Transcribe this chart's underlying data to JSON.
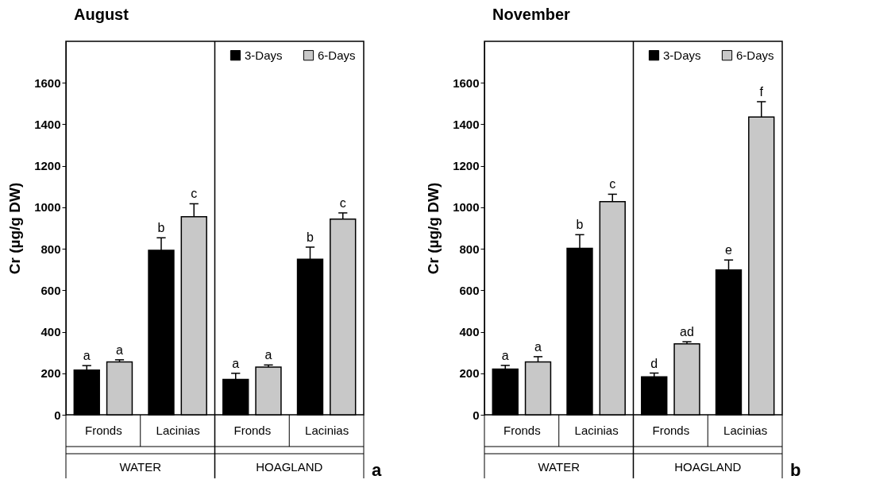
{
  "chart_data": [
    {
      "type": "bar",
      "title": "August",
      "ylabel": "Cr (µg/g DW)",
      "categories": [
        "Fronds",
        "Lacinias",
        "Fronds",
        "Lacinias"
      ],
      "series": [
        {
          "name": "3-Days",
          "color": "#000000",
          "values": [
            215,
            793,
            170,
            750
          ],
          "errors": [
            22,
            60,
            30,
            58
          ]
        },
        {
          "name": "6-Days",
          "color": "#c8c8c8",
          "values": [
            255,
            955,
            230,
            943
          ],
          "errors": [
            10,
            62,
            10,
            30
          ]
        }
      ],
      "ylim": [
        0,
        1800
      ],
      "yticks": [
        0,
        200,
        400,
        600,
        800,
        1000,
        1200,
        1400,
        1600
      ],
      "legend": "top right",
      "annotations": [
        "a",
        "b",
        "a",
        "b",
        "a",
        "c",
        "a",
        "c",
        "WATER",
        "HOAGLAND",
        "a"
      ]
    },
    {
      "type": "bar",
      "title": "November",
      "ylabel": "Cr (µg/g DW)",
      "categories": [
        "Fronds",
        "Lacinias",
        "Fronds",
        "Lacinias"
      ],
      "series": [
        {
          "name": "3-Days",
          "color": "#000000",
          "values": [
            220,
            802,
            183,
            698
          ],
          "errors": [
            18,
            66,
            18,
            48
          ]
        },
        {
          "name": "6-Days",
          "color": "#c8c8c8",
          "values": [
            255,
            1027,
            342,
            1435
          ],
          "errors": [
            25,
            36,
            10,
            74
          ]
        }
      ],
      "ylim": [
        0,
        1800
      ],
      "yticks": [
        0,
        200,
        400,
        600,
        800,
        1000,
        1200,
        1400,
        1600
      ],
      "legend": "top right",
      "annotations": [
        "a",
        "b",
        "d",
        "e",
        "a",
        "c",
        "ad",
        "f",
        "WATER",
        "HOAGLAND",
        "b"
      ]
    }
  ]
}
